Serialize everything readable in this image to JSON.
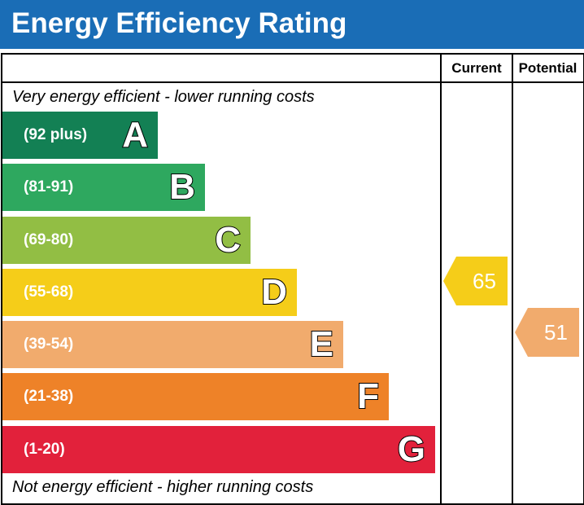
{
  "header": {
    "title": "Energy Efficiency Rating"
  },
  "columns": {
    "current": "Current",
    "potential": "Potential"
  },
  "notes": {
    "top": "Very energy efficient - lower running costs",
    "bottom": "Not energy efficient - higher running costs"
  },
  "chart_data": {
    "type": "bar",
    "title": "Energy Efficiency Rating",
    "categories": [
      "A",
      "B",
      "C",
      "D",
      "E",
      "F",
      "G"
    ],
    "bands": [
      {
        "letter": "A",
        "range": "(92 plus)",
        "color": "#138054"
      },
      {
        "letter": "B",
        "range": "(81-91)",
        "color": "#2ea85f"
      },
      {
        "letter": "C",
        "range": "(69-80)",
        "color": "#92be44"
      },
      {
        "letter": "D",
        "range": "(55-68)",
        "color": "#f5cd19"
      },
      {
        "letter": "E",
        "range": "(39-54)",
        "color": "#f1ab6d"
      },
      {
        "letter": "F",
        "range": "(21-38)",
        "color": "#ee8228"
      },
      {
        "letter": "G",
        "range": "(1-20)",
        "color": "#e2213b"
      }
    ],
    "current": {
      "value": 65,
      "band": "D",
      "color": "#f5cd19"
    },
    "potential": {
      "value": 51,
      "band": "E",
      "color": "#f1ab6d"
    }
  }
}
